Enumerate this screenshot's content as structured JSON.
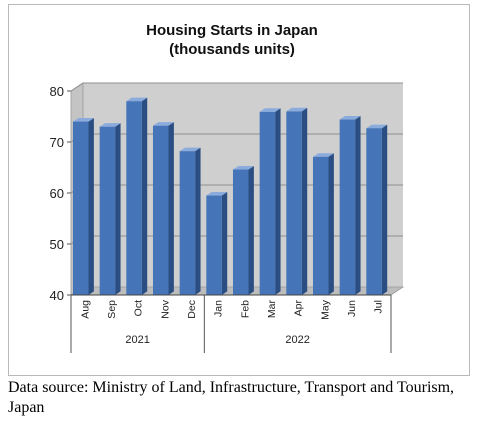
{
  "chart_data": {
    "type": "bar",
    "title_lines": [
      "Housing Starts in Japan",
      "(thousands units)"
    ],
    "categories": [
      "Aug",
      "Sep",
      "Oct",
      "Nov",
      "Dec",
      "Jan",
      "Feb",
      "Mar",
      "Apr",
      "May",
      "Jun",
      "Jul"
    ],
    "groups": [
      {
        "label": "2021",
        "count": 5
      },
      {
        "label": "2022",
        "count": 7
      }
    ],
    "values": [
      74.0,
      73.0,
      78.0,
      73.2,
      68.2,
      59.5,
      64.6,
      75.9,
      76.0,
      67.1,
      74.4,
      72.7
    ],
    "ylim": [
      40,
      80
    ],
    "yticks": [
      40,
      50,
      60,
      70,
      80
    ],
    "grid": true,
    "legend": "none",
    "colors": {
      "bar_front": "#4574b8",
      "bar_side": "#2b4e82",
      "bar_top": "#8aabdc",
      "plot_background": "#cfcfcf",
      "plot_floor": "#bdbdbd",
      "grid": "#8f8f8f"
    }
  },
  "caption": "Data source: Ministry of Land, Infrastructure, Transport and Tourism, Japan"
}
